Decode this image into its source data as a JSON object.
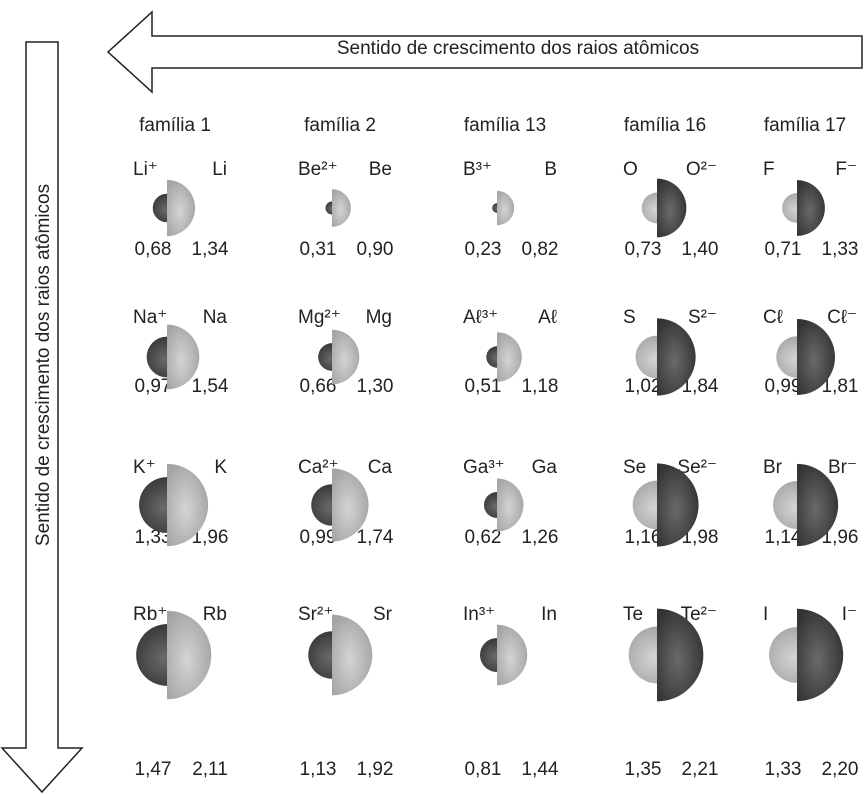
{
  "arrows": {
    "horizontal": "Sentido de crescimento dos raios atômicos",
    "vertical": "Sentido de crescimento dos raios atômicos"
  },
  "families": [
    "família 1",
    "família 2",
    "família 13",
    "família 16",
    "família 17"
  ],
  "rows": [
    [
      {
        "left": {
          "symbol": "Li⁺",
          "radius": {
            "value": 0.68,
            "label": "0,68"
          }
        },
        "right": {
          "symbol": "Li",
          "radius": {
            "value": 1.34,
            "label": "1,34"
          }
        }
      },
      {
        "left": {
          "symbol": "Be²⁺",
          "radius": {
            "value": 0.31,
            "label": "0,31"
          }
        },
        "right": {
          "symbol": "Be",
          "radius": {
            "value": 0.9,
            "label": "0,90"
          }
        }
      },
      {
        "left": {
          "symbol": "B³⁺",
          "radius": {
            "value": 0.23,
            "label": "0,23"
          }
        },
        "right": {
          "symbol": "B",
          "radius": {
            "value": 0.82,
            "label": "0,82"
          }
        }
      },
      {
        "left": {
          "symbol": "O",
          "radius": {
            "value": 0.73,
            "label": "0,73"
          }
        },
        "right": {
          "symbol": "O²⁻",
          "radius": {
            "value": 1.4,
            "label": "1,40"
          }
        }
      },
      {
        "left": {
          "symbol": "F",
          "radius": {
            "value": 0.71,
            "label": "0,71"
          }
        },
        "right": {
          "symbol": "F⁻",
          "radius": {
            "value": 1.33,
            "label": "1,33"
          }
        }
      }
    ],
    [
      {
        "left": {
          "symbol": "Na⁺",
          "radius": {
            "value": 0.97,
            "label": "0,97"
          }
        },
        "right": {
          "symbol": "Na",
          "radius": {
            "value": 1.54,
            "label": "1,54"
          }
        }
      },
      {
        "left": {
          "symbol": "Mg²⁺",
          "radius": {
            "value": 0.66,
            "label": "0,66"
          }
        },
        "right": {
          "symbol": "Mg",
          "radius": {
            "value": 1.3,
            "label": "1,30"
          }
        }
      },
      {
        "left": {
          "symbol": "Aℓ³⁺",
          "radius": {
            "value": 0.51,
            "label": "0,51"
          }
        },
        "right": {
          "symbol": "Aℓ",
          "radius": {
            "value": 1.18,
            "label": "1,18"
          }
        }
      },
      {
        "left": {
          "symbol": "S",
          "radius": {
            "value": 1.02,
            "label": "1,02"
          }
        },
        "right": {
          "symbol": "S²⁻",
          "radius": {
            "value": 1.84,
            "label": "1,84"
          }
        }
      },
      {
        "left": {
          "symbol": "Cℓ",
          "radius": {
            "value": 0.99,
            "label": "0,99"
          }
        },
        "right": {
          "symbol": "Cℓ⁻",
          "radius": {
            "value": 1.81,
            "label": "1,81"
          }
        }
      }
    ],
    [
      {
        "left": {
          "symbol": "K⁺",
          "radius": {
            "value": 1.33,
            "label": "1,33"
          }
        },
        "right": {
          "symbol": "K",
          "radius": {
            "value": 1.96,
            "label": "1,96"
          }
        }
      },
      {
        "left": {
          "symbol": "Ca²⁺",
          "radius": {
            "value": 0.99,
            "label": "0,99"
          }
        },
        "right": {
          "symbol": "Ca",
          "radius": {
            "value": 1.74,
            "label": "1,74"
          }
        }
      },
      {
        "left": {
          "symbol": "Ga³⁺",
          "radius": {
            "value": 0.62,
            "label": "0,62"
          }
        },
        "right": {
          "symbol": "Ga",
          "radius": {
            "value": 1.26,
            "label": "1,26"
          }
        }
      },
      {
        "left": {
          "symbol": "Se",
          "radius": {
            "value": 1.16,
            "label": "1,16"
          }
        },
        "right": {
          "symbol": "Se²⁻",
          "radius": {
            "value": 1.98,
            "label": "1,98"
          }
        }
      },
      {
        "left": {
          "symbol": "Br",
          "radius": {
            "value": 1.14,
            "label": "1,14"
          }
        },
        "right": {
          "symbol": "Br⁻",
          "radius": {
            "value": 1.96,
            "label": "1,96"
          }
        }
      }
    ],
    [
      {
        "left": {
          "symbol": "Rb⁺",
          "radius": {
            "value": 1.47,
            "label": "1,47"
          }
        },
        "right": {
          "symbol": "Rb",
          "radius": {
            "value": 2.11,
            "label": "2,11"
          }
        }
      },
      {
        "left": {
          "symbol": "Sr²⁺",
          "radius": {
            "value": 1.13,
            "label": "1,13"
          }
        },
        "right": {
          "symbol": "Sr",
          "radius": {
            "value": 1.92,
            "label": "1,92"
          }
        }
      },
      {
        "left": {
          "symbol": "In³⁺",
          "radius": {
            "value": 0.81,
            "label": "0,81"
          }
        },
        "right": {
          "symbol": "In",
          "radius": {
            "value": 1.44,
            "label": "1,44"
          }
        }
      },
      {
        "left": {
          "symbol": "Te",
          "radius": {
            "value": 1.35,
            "label": "1,35"
          }
        },
        "right": {
          "symbol": "Te²⁻",
          "radius": {
            "value": 2.21,
            "label": "2,21"
          }
        }
      },
      {
        "left": {
          "symbol": "I",
          "radius": {
            "value": 1.33,
            "label": "1,33"
          }
        },
        "right": {
          "symbol": "I⁻",
          "radius": {
            "value": 2.2,
            "label": "2,20"
          }
        }
      }
    ]
  ]
}
